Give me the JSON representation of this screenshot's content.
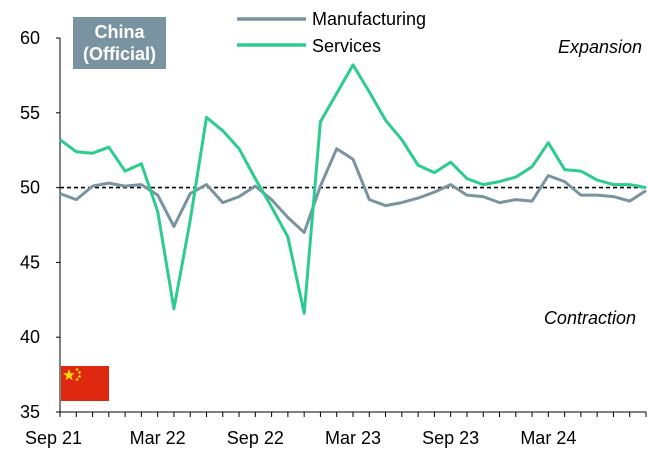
{
  "chart_data": {
    "type": "line",
    "title": "China (Official)",
    "title_lines": [
      "China",
      "(Official)"
    ],
    "flag_icon": "china-flag-icon",
    "badge_color": "#7993a1",
    "ylim": [
      35,
      60
    ],
    "yticks": [
      35,
      40,
      45,
      50,
      55,
      60
    ],
    "x_tick_labels": [
      "Sep 21",
      "Mar 22",
      "Sep 22",
      "Mar 23",
      "Sep 23",
      "Mar 24"
    ],
    "x_tick_indices": [
      0,
      6,
      12,
      18,
      24,
      30
    ],
    "reference_line": 50,
    "annotations": {
      "upper": "Expansion",
      "lower": "Contraction"
    },
    "legend_position": "top-center",
    "x": [
      "Sep 21",
      "Oct 21",
      "Nov 21",
      "Dec 21",
      "Jan 22",
      "Feb 22",
      "Mar 22",
      "Apr 22",
      "May 22",
      "Jun 22",
      "Jul 22",
      "Aug 22",
      "Sep 22",
      "Oct 22",
      "Nov 22",
      "Dec 22",
      "Jan 23",
      "Feb 23",
      "Mar 23",
      "Apr 23",
      "May 23",
      "Jun 23",
      "Jul 23",
      "Aug 23",
      "Sep 23",
      "Oct 23",
      "Nov 23",
      "Dec 23",
      "Jan 24",
      "Feb 24",
      "Mar 24",
      "Apr 24",
      "May 24",
      "Jun 24",
      "Jul 24",
      "Aug 24",
      "Sep 24"
    ],
    "series": [
      {
        "name": "Manufacturing",
        "color": "#7993a1",
        "values": [
          49.6,
          49.2,
          50.1,
          50.3,
          50.1,
          50.2,
          49.5,
          47.4,
          49.6,
          50.2,
          49.0,
          49.4,
          50.1,
          49.2,
          48.0,
          47.0,
          50.1,
          52.6,
          51.9,
          49.2,
          48.8,
          49.0,
          49.3,
          49.7,
          50.2,
          49.5,
          49.4,
          49.0,
          49.2,
          49.1,
          50.8,
          50.4,
          49.5,
          49.5,
          49.4,
          49.1,
          49.8
        ]
      },
      {
        "name": "Services",
        "color": "#2ccc8f",
        "values": [
          53.2,
          52.4,
          52.3,
          52.7,
          51.1,
          51.6,
          48.4,
          41.9,
          47.8,
          54.7,
          53.8,
          52.6,
          50.6,
          48.7,
          46.7,
          41.6,
          54.4,
          56.3,
          58.2,
          56.4,
          54.5,
          53.2,
          51.5,
          51.0,
          51.7,
          50.6,
          50.2,
          50.4,
          50.7,
          51.4,
          53.0,
          51.2,
          51.1,
          50.5,
          50.2,
          50.2,
          50.0
        ]
      }
    ]
  }
}
